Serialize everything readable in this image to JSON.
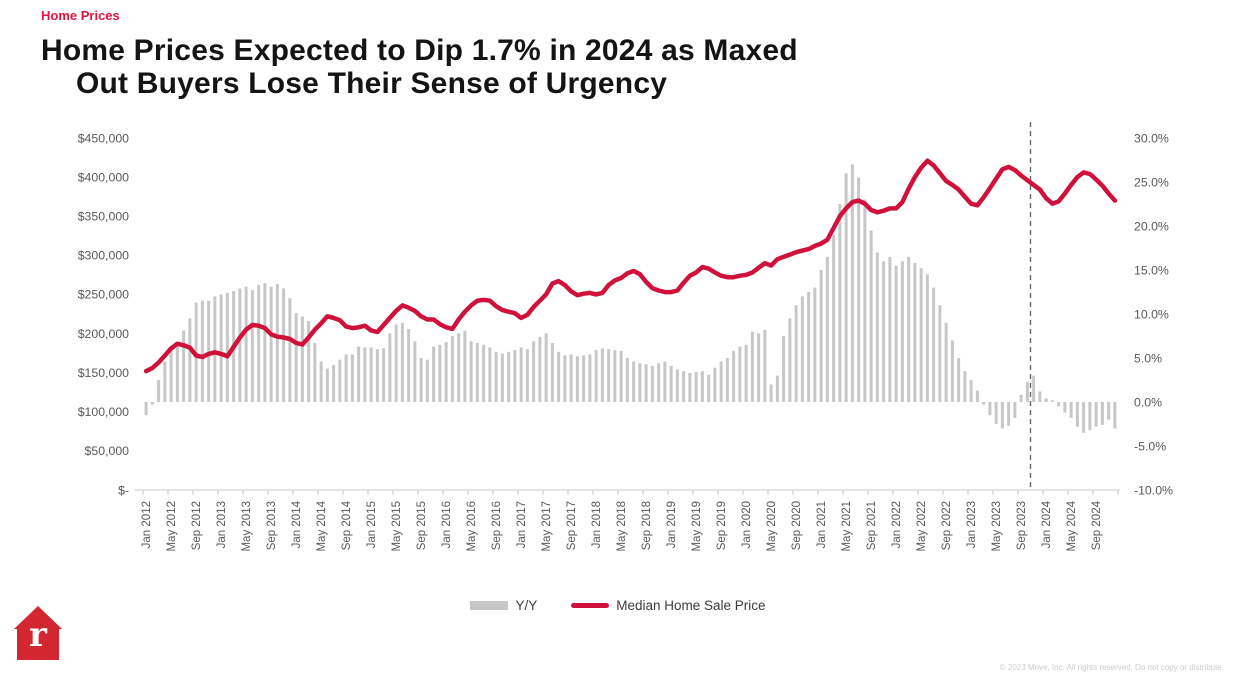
{
  "page": {
    "eyebrow": "Home Prices",
    "title_line1": "Home Prices Expected to Dip 1.7% in 2024 as Maxed",
    "title_line2": "Out Buyers Lose Their Sense of Urgency",
    "footer_copyright": "© 2023 Move, Inc. All rights reserved. Do not copy or distribute.",
    "logo_letter": "r"
  },
  "colors": {
    "accent_red": "#d0123b",
    "eyebrow_red": "#e3123e",
    "bar_gray": "#c7c7c7",
    "axis_text_gray": "#595959",
    "axis_line_gray": "#c9c9c9",
    "divider_gray": "#666666",
    "logo_red": "#d22630",
    "footer_gray": "#cccccc"
  },
  "legend": {
    "items": [
      {
        "label": "Y/Y",
        "swatch": "bar",
        "color": "#c7c7c7"
      },
      {
        "label": "Median Home Sale Price",
        "swatch": "line",
        "color": "#d0123b"
      }
    ]
  },
  "chart_data": {
    "type": "combo bar+line",
    "title": "Home Prices Expected to Dip 1.7% in 2024 as Maxed Out Buyers Lose Their Sense of Urgency",
    "x_frequency": "monthly",
    "x_range_start": "Jan 2012",
    "x_range_end": "Dec 2024",
    "x_tick_labels": [
      "Jan 2012",
      "May 2012",
      "Sep 2012",
      "Jan 2013",
      "May 2013",
      "Sep 2013",
      "Jan 2014",
      "May 2014",
      "Sep 2014",
      "Jan 2015",
      "May 2015",
      "Sep 2015",
      "Jan 2016",
      "May 2016",
      "Sep 2016",
      "Jan 2017",
      "May 2017",
      "Sep 2017",
      "Jan 2018",
      "May 2018",
      "Sep 2018",
      "Jan 2019",
      "May 2019",
      "Sep 2019",
      "Jan 2020",
      "May 2020",
      "Sep 2020",
      "Jan 2021",
      "May 2021",
      "Sep 2021",
      "Jan 2022",
      "May 2022",
      "Sep 2022",
      "Jan 2023",
      "May 2023",
      "Sep 2023",
      "Jan 2024",
      "May 2024",
      "Sep 2024"
    ],
    "left_axis": {
      "min": 0,
      "max": 450000,
      "tick_labels": [
        "$450,000",
        "$400,000",
        "$350,000",
        "$300,000",
        "$250,000",
        "$200,000",
        "$150,000",
        "$100,000",
        "$50,000",
        "$-"
      ]
    },
    "right_axis": {
      "min": -10,
      "max": 30,
      "tick_labels": [
        "30.0%",
        "25.0%",
        "20.0%",
        "15.0%",
        "10.0%",
        "5.0%",
        "0.0%",
        "-5.0%",
        "-10.0%"
      ]
    },
    "forecast_divider": {
      "style": "dashed",
      "after_month": "Oct 2023",
      "month_index": 142
    },
    "grid": "off",
    "legend_position": "bottom-center",
    "series": [
      {
        "name": "Y/Y",
        "type": "bar",
        "axis": "right",
        "unit": "percent",
        "color": "#c7c7c7",
        "values": [
          -1.5,
          -0.3,
          2.5,
          4.6,
          5.8,
          6.7,
          8.1,
          9.5,
          11.3,
          11.5,
          11.5,
          12.0,
          12.2,
          12.4,
          12.6,
          12.9,
          13.1,
          12.7,
          13.3,
          13.5,
          13.1,
          13.4,
          12.9,
          11.8,
          10.1,
          9.7,
          9.2,
          6.7,
          4.6,
          3.8,
          4.2,
          4.8,
          5.4,
          5.4,
          6.3,
          6.2,
          6.2,
          6.0,
          6.1,
          7.8,
          8.8,
          9.0,
          8.3,
          6.9,
          5.0,
          4.8,
          6.3,
          6.5,
          6.8,
          7.5,
          7.8,
          8.1,
          6.9,
          6.7,
          6.5,
          6.2,
          5.7,
          5.5,
          5.7,
          5.9,
          6.2,
          6.0,
          6.9,
          7.4,
          7.8,
          6.7,
          5.7,
          5.3,
          5.4,
          5.2,
          5.3,
          5.4,
          5.9,
          6.1,
          6.0,
          5.9,
          5.8,
          5.0,
          4.6,
          4.4,
          4.3,
          4.1,
          4.4,
          4.6,
          4.1,
          3.7,
          3.5,
          3.3,
          3.4,
          3.5,
          3.1,
          3.9,
          4.6,
          5.0,
          5.8,
          6.3,
          6.5,
          8.0,
          7.8,
          8.2,
          2.0,
          3.0,
          7.5,
          9.5,
          11.0,
          12.0,
          12.5,
          13.0,
          15.0,
          16.5,
          19.0,
          22.5,
          26.0,
          27.0,
          25.5,
          23.0,
          19.5,
          17.0,
          16.0,
          16.5,
          15.5,
          16.0,
          16.5,
          15.8,
          15.2,
          14.5,
          13.0,
          11.0,
          9.0,
          7.0,
          5.0,
          3.5,
          2.5,
          1.3,
          -0.3,
          -1.5,
          -2.5,
          -3.0,
          -2.7,
          -1.8,
          0.8,
          2.3,
          3.0,
          1.2,
          0.4,
          0.2,
          -0.5,
          -1.2,
          -1.8,
          -2.8,
          -3.5,
          -3.2,
          -2.8,
          -2.6,
          -2.0,
          -3.0
        ]
      },
      {
        "name": "Median Home Sale Price",
        "type": "line",
        "axis": "left",
        "unit": "USD",
        "color": "#d0123b",
        "values": [
          152000,
          156000,
          163000,
          172000,
          181000,
          187000,
          185000,
          182000,
          172000,
          170000,
          174000,
          176000,
          174000,
          171000,
          183000,
          195000,
          205000,
          211000,
          210000,
          207000,
          199000,
          196000,
          195000,
          193000,
          188000,
          186000,
          195000,
          205000,
          213000,
          222000,
          220000,
          217000,
          209000,
          207000,
          208000,
          210000,
          204000,
          202000,
          211000,
          220000,
          229000,
          236000,
          233000,
          229000,
          222000,
          218000,
          218000,
          212000,
          208000,
          206000,
          218000,
          228000,
          236000,
          242000,
          243000,
          242000,
          235000,
          230000,
          228000,
          226000,
          220000,
          224000,
          234000,
          242000,
          250000,
          264000,
          267000,
          262000,
          254000,
          249000,
          251000,
          252000,
          250000,
          252000,
          262000,
          268000,
          271000,
          277000,
          280000,
          276000,
          266000,
          258000,
          255000,
          253000,
          253000,
          255000,
          265000,
          274000,
          278000,
          285000,
          283000,
          278000,
          274000,
          272000,
          272000,
          274000,
          275000,
          278000,
          284000,
          290000,
          287000,
          295000,
          298000,
          301000,
          304000,
          306000,
          308000,
          312000,
          315000,
          320000,
          335000,
          350000,
          360000,
          368000,
          370000,
          366000,
          358000,
          355000,
          357000,
          360000,
          360000,
          368000,
          385000,
          400000,
          412000,
          421000,
          415000,
          405000,
          395000,
          390000,
          384000,
          375000,
          366000,
          364000,
          374000,
          386000,
          398000,
          410000,
          413000,
          409000,
          402000,
          396000,
          390000,
          384000,
          373000,
          366000,
          369000,
          379000,
          390000,
          400000,
          406000,
          404000,
          397000,
          389000,
          379000,
          370000
        ]
      }
    ]
  }
}
